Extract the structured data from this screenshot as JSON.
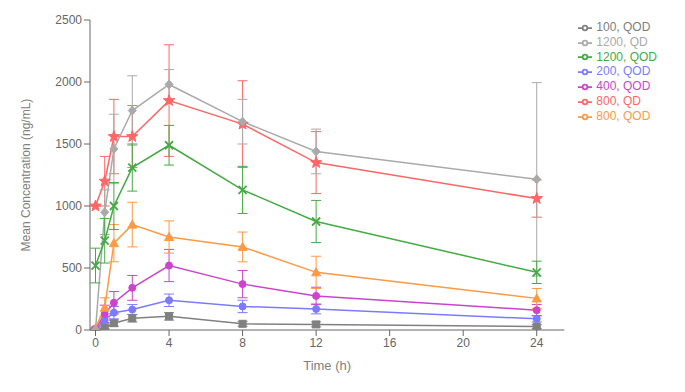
{
  "chart_data": {
    "type": "line",
    "title": "",
    "xlabel": "Time (h)",
    "ylabel": "Mean Concentration (ng/mL)",
    "xlim": [
      -0.3,
      25.5
    ],
    "ylim": [
      0,
      2500
    ],
    "xticks": [
      0,
      4,
      8,
      12,
      16,
      20,
      24
    ],
    "yticks": [
      0,
      500,
      1000,
      1500,
      2000,
      2500
    ],
    "grid": false,
    "legend": "right",
    "x": [
      0,
      0.5,
      1,
      2,
      4,
      8,
      12,
      24
    ],
    "series": [
      {
        "name": "100, QOD",
        "color": "#808080",
        "marker": "square",
        "line_style": "solid",
        "values": [
          2,
          20,
          55,
          95,
          110,
          50,
          45,
          28
        ],
        "error_lo": [
          2,
          10,
          25,
          30,
          30,
          20,
          20,
          15
        ],
        "error_hi": [
          2,
          10,
          25,
          30,
          30,
          20,
          20,
          15
        ]
      },
      {
        "name": "200, QOD",
        "color": "#7b7bff",
        "marker": "circle",
        "line_style": "solid",
        "values": [
          5,
          80,
          140,
          165,
          240,
          190,
          170,
          90
        ],
        "error_lo": [
          3,
          30,
          50,
          40,
          50,
          50,
          40,
          25
        ],
        "error_hi": [
          3,
          30,
          50,
          40,
          50,
          50,
          40,
          25
        ]
      },
      {
        "name": "400, QOD",
        "color": "#cc44cc",
        "marker": "circle",
        "line_style": "solid",
        "values": [
          10,
          130,
          220,
          340,
          520,
          370,
          275,
          160
        ],
        "error_lo": [
          5,
          70,
          90,
          100,
          130,
          110,
          70,
          45
        ],
        "error_hi": [
          5,
          70,
          90,
          100,
          130,
          110,
          70,
          45
        ]
      },
      {
        "name": "800, QD",
        "color": "#ff6666",
        "marker": "star",
        "line_style": "solid",
        "values": [
          1000,
          1200,
          1560,
          1560,
          1850,
          1660,
          1350,
          1060
        ],
        "error_lo": [
          0,
          200,
          300,
          250,
          450,
          350,
          250,
          150
        ],
        "error_hi": [
          0,
          200,
          300,
          250,
          450,
          350,
          250,
          150
        ]
      },
      {
        "name": "800, QOD",
        "color": "#ff9944",
        "marker": "triangle",
        "line_style": "solid",
        "values": [
          15,
          180,
          700,
          850,
          750,
          670,
          465,
          255
        ],
        "error_lo": [
          5,
          80,
          150,
          180,
          130,
          120,
          130,
          80
        ],
        "error_hi": [
          5,
          80,
          150,
          180,
          130,
          120,
          130,
          80
        ]
      },
      {
        "name": "1200, QD",
        "color": "#aaaaaa",
        "marker": "diamond",
        "line_style": "solid",
        "values": [
          0,
          950,
          1460,
          1770,
          1980,
          1680,
          1440,
          1215
        ],
        "error_lo": [
          0,
          180,
          280,
          280,
          120,
          180,
          180,
          780
        ],
        "error_hi": [
          0,
          180,
          280,
          280,
          120,
          180,
          180,
          780
        ]
      },
      {
        "name": "1200, QOD",
        "color": "#44aa44",
        "marker": "x",
        "line_style": "solid",
        "values": [
          520,
          720,
          1000,
          1310,
          1490,
          1130,
          875,
          465
        ],
        "error_lo": [
          140,
          180,
          190,
          190,
          160,
          190,
          170,
          90
        ],
        "error_hi": [
          140,
          180,
          190,
          190,
          160,
          190,
          170,
          90
        ]
      }
    ]
  }
}
